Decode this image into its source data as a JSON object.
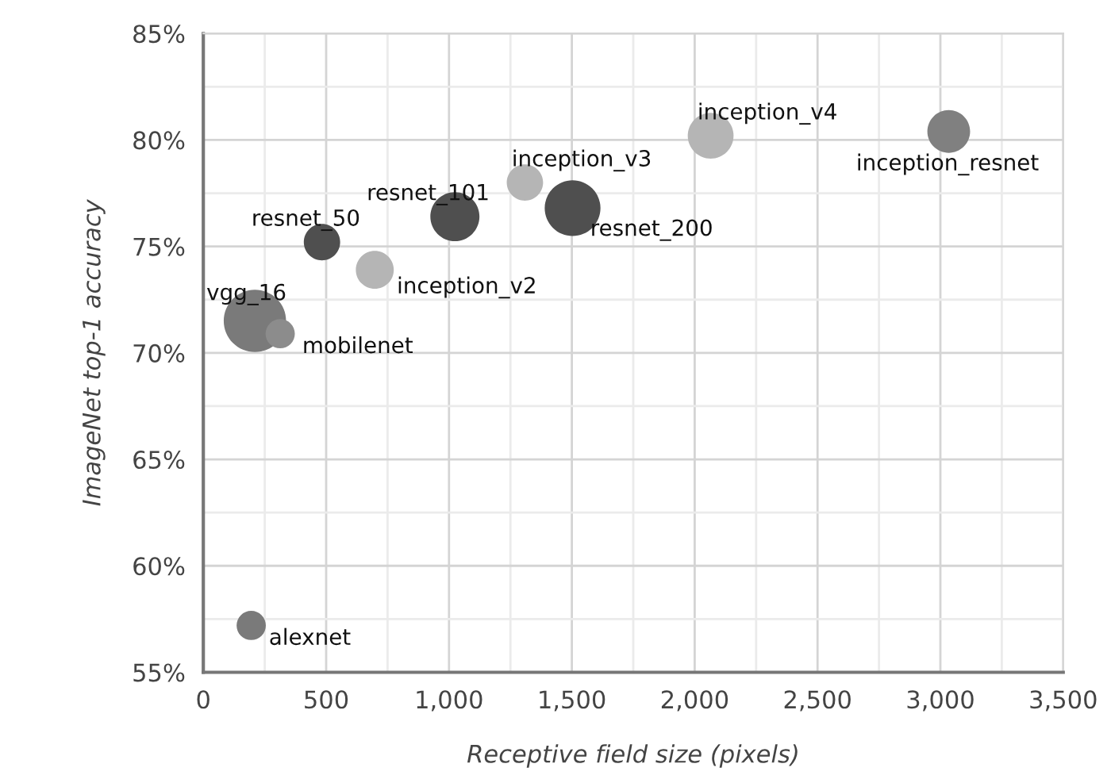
{
  "chart_data": {
    "type": "bubble",
    "xlabel": "Receptive field size (pixels)",
    "ylabel": "ImageNet top-1 accuracy",
    "x": [
      195,
      210,
      313,
      483,
      698,
      1024,
      1309,
      1503,
      2065,
      3034
    ],
    "values": [
      57.2,
      71.5,
      70.9,
      75.2,
      73.9,
      76.4,
      78.0,
      76.8,
      80.2,
      80.4
    ],
    "sizes": [
      0.22,
      1,
      0.22,
      0.34,
      0.37,
      0.62,
      0.34,
      0.8,
      0.54,
      0.47
    ],
    "colors": [
      "#7a7a7a",
      "#7a7a7a",
      "#8c8c8c",
      "#4f4f4f",
      "#b5b5b5",
      "#4f4f4f",
      "#b5b5b5",
      "#4f4f4f",
      "#b5b5b5",
      "#808080"
    ],
    "annotations": [
      {
        "text": "alexnet",
        "x": 195,
        "y": 57.2
      },
      {
        "text": "vgg_16",
        "x": 210,
        "y": 71.5
      },
      {
        "text": "mobilenet",
        "x": 313,
        "y": 70.9
      },
      {
        "text": "resnet_50",
        "x": 483,
        "y": 75.2
      },
      {
        "text": "inception_v2",
        "x": 698,
        "y": 73.9
      },
      {
        "text": "resnet_101",
        "x": 1024,
        "y": 76.4
      },
      {
        "text": "inception_v3",
        "x": 1309,
        "y": 78.0
      },
      {
        "text": "resnet_200",
        "x": 1503,
        "y": 76.8
      },
      {
        "text": "inception_v4",
        "x": 2065,
        "y": 80.2
      },
      {
        "text": "inception_resnet",
        "x": 3034,
        "y": 80.4
      }
    ],
    "xlim": [
      0,
      3500
    ],
    "xticks": [
      0,
      500,
      {
        "value": 1000,
        "label": "1,000"
      },
      {
        "value": 1500,
        "label": "1,500"
      },
      {
        "value": 2000,
        "label": "2,000"
      },
      {
        "value": 2500,
        "label": "2,500"
      },
      {
        "value": 3000,
        "label": "3,000"
      },
      {
        "value": 3500,
        "label": "3,500"
      }
    ],
    "ylim": [
      55,
      85
    ],
    "yticks": [
      {
        "value": 55,
        "label": "55%"
      },
      {
        "value": 60,
        "label": "60%"
      },
      {
        "value": 65,
        "label": "65%"
      },
      {
        "value": 70,
        "label": "70%"
      },
      {
        "value": 75,
        "label": "75%"
      },
      {
        "value": 80,
        "label": "80%"
      },
      {
        "value": 85,
        "label": "85%"
      }
    ],
    "grid": true,
    "legend": false
  }
}
